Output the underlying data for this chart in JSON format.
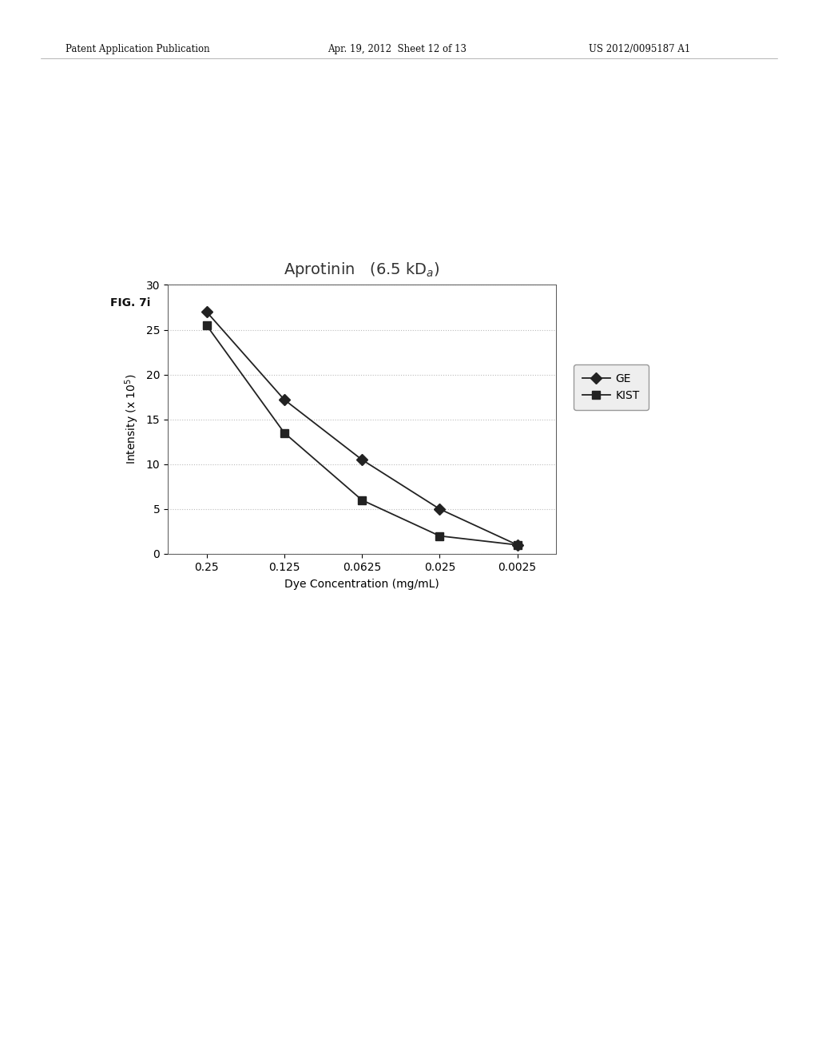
{
  "title": "Aprotinin   (6.5 kD$_a$)",
  "xlabel": "Dye Concentration (mg/mL)",
  "ylabel": "Intensity (x 10$^5$)",
  "x_labels": [
    "0.25",
    "0.125",
    "0.0625",
    "0.025",
    "0.0025"
  ],
  "x_positions": [
    1,
    2,
    3,
    4,
    5
  ],
  "GE_values": [
    27.0,
    17.2,
    10.5,
    5.0,
    1.0
  ],
  "KIST_values": [
    25.5,
    13.5,
    6.0,
    2.0,
    1.0
  ],
  "ylim": [
    0,
    30
  ],
  "yticks": [
    0,
    5,
    10,
    15,
    20,
    25,
    30
  ],
  "line_color": "#222222",
  "marker_GE": "D",
  "marker_KIST": "s",
  "legend_GE": "GE",
  "legend_KIST": "KIST",
  "background_color": "#ffffff",
  "plot_bg_color": "#ffffff",
  "grid_color": "#bbbbbb",
  "fig_label": "FIG. 7i",
  "header_left": "Patent Application Publication",
  "header_mid": "Apr. 19, 2012  Sheet 12 of 13",
  "header_right": "US 2012/0095187 A1"
}
